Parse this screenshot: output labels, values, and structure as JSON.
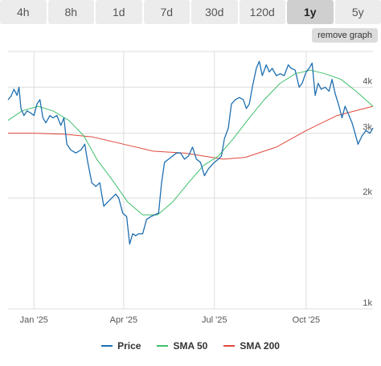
{
  "timeframes": [
    "4h",
    "8h",
    "1d",
    "7d",
    "30d",
    "120d",
    "1y",
    "5y"
  ],
  "active_timeframe": "1y",
  "remove_graph_label": "remove graph",
  "colors": {
    "price": "#1f6fb0",
    "sma50": "#3fbf6a",
    "sma200": "#e0493c",
    "grid": "#dddddd",
    "axis_text": "#555555"
  },
  "chart_data": {
    "type": "line",
    "title": "",
    "xlabel": "",
    "ylabel": "",
    "y_scale": "log",
    "ylim": [
      1000,
      5000
    ],
    "y_ticks": [
      1000,
      2000,
      3000,
      4000
    ],
    "y_tick_labels": [
      "1k",
      "2k",
      "3k",
      "4k"
    ],
    "x_range": [
      "2024-12-06",
      "2025-12-07"
    ],
    "x_ticks": [
      "2025-01-01",
      "2025-04-01",
      "2025-07-01",
      "2025-10-01"
    ],
    "x_tick_labels": [
      "Jan '25",
      "Apr '25",
      "Jul '25",
      "Oct '25"
    ],
    "grid": true,
    "legend_position": "bottom",
    "series": [
      {
        "name": "Price",
        "points": [
          [
            "2024-12-06",
            3700
          ],
          [
            "2024-12-09",
            3780
          ],
          [
            "2024-12-12",
            3950
          ],
          [
            "2024-12-15",
            3800
          ],
          [
            "2024-12-17",
            4000
          ],
          [
            "2024-12-19",
            3500
          ],
          [
            "2024-12-22",
            3350
          ],
          [
            "2024-12-25",
            3450
          ],
          [
            "2024-12-29",
            3400
          ],
          [
            "2025-01-01",
            3350
          ],
          [
            "2025-01-04",
            3600
          ],
          [
            "2025-01-07",
            3700
          ],
          [
            "2025-01-10",
            3300
          ],
          [
            "2025-01-13",
            3200
          ],
          [
            "2025-01-17",
            3350
          ],
          [
            "2025-01-20",
            3300
          ],
          [
            "2025-01-24",
            3350
          ],
          [
            "2025-01-28",
            3150
          ],
          [
            "2025-01-31",
            3300
          ],
          [
            "2025-02-03",
            2800
          ],
          [
            "2025-02-07",
            2700
          ],
          [
            "2025-02-12",
            2650
          ],
          [
            "2025-02-17",
            2700
          ],
          [
            "2025-02-21",
            2800
          ],
          [
            "2025-02-24",
            2500
          ],
          [
            "2025-02-28",
            2200
          ],
          [
            "2025-03-04",
            2150
          ],
          [
            "2025-03-08",
            2200
          ],
          [
            "2025-03-12",
            1900
          ],
          [
            "2025-03-16",
            1950
          ],
          [
            "2025-03-20",
            2000
          ],
          [
            "2025-03-24",
            2050
          ],
          [
            "2025-03-27",
            2000
          ],
          [
            "2025-03-31",
            1820
          ],
          [
            "2025-04-04",
            1780
          ],
          [
            "2025-04-07",
            1500
          ],
          [
            "2025-04-10",
            1600
          ],
          [
            "2025-04-13",
            1580
          ],
          [
            "2025-04-16",
            1600
          ],
          [
            "2025-04-20",
            1600
          ],
          [
            "2025-04-24",
            1750
          ],
          [
            "2025-04-28",
            1780
          ],
          [
            "2025-05-02",
            1800
          ],
          [
            "2025-05-06",
            1820
          ],
          [
            "2025-05-09",
            2200
          ],
          [
            "2025-05-12",
            2500
          ],
          [
            "2025-05-16",
            2550
          ],
          [
            "2025-05-20",
            2600
          ],
          [
            "2025-05-24",
            2650
          ],
          [
            "2025-05-28",
            2650
          ],
          [
            "2025-06-01",
            2550
          ],
          [
            "2025-06-05",
            2600
          ],
          [
            "2025-06-09",
            2750
          ],
          [
            "2025-06-13",
            2550
          ],
          [
            "2025-06-17",
            2500
          ],
          [
            "2025-06-21",
            2300
          ],
          [
            "2025-06-25",
            2400
          ],
          [
            "2025-06-28",
            2450
          ],
          [
            "2025-07-01",
            2500
          ],
          [
            "2025-07-05",
            2550
          ],
          [
            "2025-07-08",
            2600
          ],
          [
            "2025-07-11",
            2900
          ],
          [
            "2025-07-15",
            3100
          ],
          [
            "2025-07-18",
            3600
          ],
          [
            "2025-07-22",
            3700
          ],
          [
            "2025-07-26",
            3750
          ],
          [
            "2025-07-30",
            3700
          ],
          [
            "2025-08-02",
            3500
          ],
          [
            "2025-08-05",
            3600
          ],
          [
            "2025-08-08",
            4000
          ],
          [
            "2025-08-12",
            4500
          ],
          [
            "2025-08-15",
            4700
          ],
          [
            "2025-08-18",
            4300
          ],
          [
            "2025-08-22",
            4600
          ],
          [
            "2025-08-25",
            4400
          ],
          [
            "2025-08-28",
            4500
          ],
          [
            "2025-09-01",
            4300
          ],
          [
            "2025-09-05",
            4350
          ],
          [
            "2025-09-09",
            4300
          ],
          [
            "2025-09-13",
            4600
          ],
          [
            "2025-09-16",
            4500
          ],
          [
            "2025-09-20",
            4450
          ],
          [
            "2025-09-24",
            4000
          ],
          [
            "2025-09-27",
            4100
          ],
          [
            "2025-10-01",
            4400
          ],
          [
            "2025-10-04",
            4500
          ],
          [
            "2025-10-07",
            4650
          ],
          [
            "2025-10-10",
            3800
          ],
          [
            "2025-10-13",
            4100
          ],
          [
            "2025-10-16",
            3950
          ],
          [
            "2025-10-20",
            4000
          ],
          [
            "2025-10-24",
            3900
          ],
          [
            "2025-10-27",
            4200
          ],
          [
            "2025-10-30",
            3850
          ],
          [
            "2025-11-03",
            3550
          ],
          [
            "2025-11-06",
            3300
          ],
          [
            "2025-11-09",
            3550
          ],
          [
            "2025-11-12",
            3400
          ],
          [
            "2025-11-16",
            3200
          ],
          [
            "2025-11-19",
            3000
          ],
          [
            "2025-11-22",
            2800
          ],
          [
            "2025-11-26",
            2950
          ],
          [
            "2025-11-30",
            3050
          ],
          [
            "2025-12-04",
            3000
          ],
          [
            "2025-12-07",
            3100
          ]
        ]
      },
      {
        "name": "SMA 50",
        "points": [
          [
            "2024-12-06",
            3250
          ],
          [
            "2024-12-20",
            3450
          ],
          [
            "2025-01-05",
            3550
          ],
          [
            "2025-01-20",
            3450
          ],
          [
            "2025-02-05",
            3250
          ],
          [
            "2025-02-20",
            2950
          ],
          [
            "2025-03-05",
            2550
          ],
          [
            "2025-03-20",
            2250
          ],
          [
            "2025-04-05",
            1950
          ],
          [
            "2025-04-20",
            1800
          ],
          [
            "2025-05-05",
            1800
          ],
          [
            "2025-05-20",
            1950
          ],
          [
            "2025-06-05",
            2200
          ],
          [
            "2025-06-20",
            2450
          ],
          [
            "2025-07-05",
            2600
          ],
          [
            "2025-07-20",
            2900
          ],
          [
            "2025-08-05",
            3300
          ],
          [
            "2025-08-20",
            3700
          ],
          [
            "2025-09-05",
            4100
          ],
          [
            "2025-09-20",
            4350
          ],
          [
            "2025-10-05",
            4450
          ],
          [
            "2025-10-20",
            4350
          ],
          [
            "2025-11-05",
            4200
          ],
          [
            "2025-11-20",
            3900
          ],
          [
            "2025-12-07",
            3550
          ]
        ]
      },
      {
        "name": "SMA 200",
        "points": [
          [
            "2024-12-06",
            3000
          ],
          [
            "2025-01-01",
            3000
          ],
          [
            "2025-02-01",
            2980
          ],
          [
            "2025-03-01",
            2930
          ],
          [
            "2025-04-01",
            2800
          ],
          [
            "2025-05-01",
            2680
          ],
          [
            "2025-06-01",
            2650
          ],
          [
            "2025-06-20",
            2600
          ],
          [
            "2025-07-10",
            2550
          ],
          [
            "2025-08-01",
            2580
          ],
          [
            "2025-09-01",
            2750
          ],
          [
            "2025-10-01",
            3050
          ],
          [
            "2025-11-01",
            3350
          ],
          [
            "2025-12-07",
            3550
          ]
        ]
      }
    ]
  }
}
